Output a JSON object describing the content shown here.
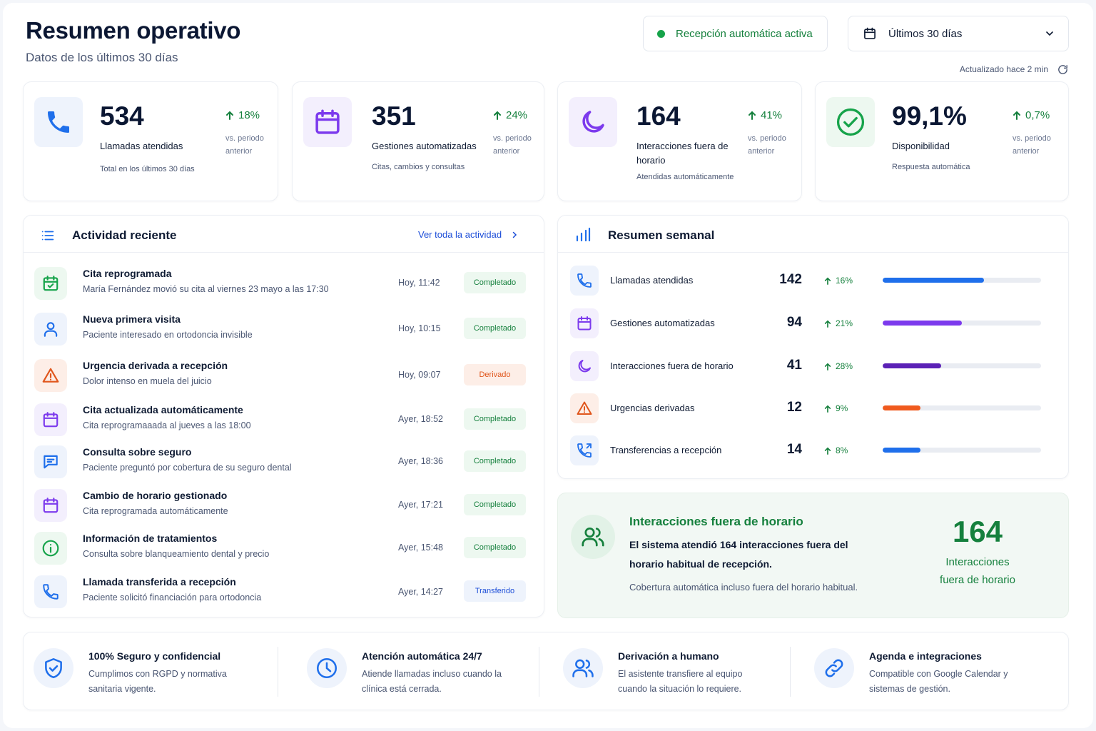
{
  "header": {
    "title": "Resumen operativo",
    "subtitle": "Datos de los últimos 30 días",
    "status_label": "Recepción automática activa",
    "range_label": "Últimos 30 días",
    "updated_label": "Actualizado hace 2 min"
  },
  "stats": [
    {
      "value": "534",
      "label": "Llamadas atendidas",
      "sub": "Total en los últimos 30 días",
      "delta": "18%",
      "vs": "vs. periodo anterior",
      "icon": "phone-icon",
      "color": "#1f6feb"
    },
    {
      "value": "351",
      "label": "Gestiones automatizadas",
      "sub": "Citas, cambios y consultas",
      "delta": "24%",
      "vs": "vs. periodo anterior",
      "icon": "calendar-icon",
      "color": "#7c3aed"
    },
    {
      "value": "164",
      "label": "Interacciones fuera de horario",
      "sub": "Atendidas automáticamente",
      "delta": "41%",
      "vs": "vs. periodo anterior",
      "icon": "moon-icon",
      "color": "#7c3aed"
    },
    {
      "value": "99,1%",
      "label": "Disponibilidad",
      "sub": "Respuesta automática",
      "delta": "0,7%",
      "vs": "vs. periodo anterior",
      "icon": "check-circle-icon",
      "color": "#16a34a"
    }
  ],
  "activity": {
    "title": "Actividad reciente",
    "view_all": "Ver toda la actividad",
    "items": [
      {
        "title": "Cita reprogramada",
        "desc": "María Fernández movió su cita al viernes 23 mayo a las 17:30",
        "time": "Hoy, 11:42",
        "status": "Completado",
        "icon": "calendar-check-icon"
      },
      {
        "title": "Nueva primera visita",
        "desc": "Paciente interesado en ortodoncia invisible",
        "time": "Hoy, 10:15",
        "status": "Completado",
        "icon": "user-icon"
      },
      {
        "title": "Urgencia derivada a recepción",
        "desc": "Dolor intenso en muela del juicio",
        "time": "Hoy, 09:07",
        "status": "Derivado",
        "icon": "warning-icon"
      },
      {
        "title": "Cita actualizada automáticamente",
        "desc": "Cita reprogramaaada al jueves a las 18:00",
        "time": "Ayer, 18:52",
        "status": "Completado",
        "icon": "calendar-icon"
      },
      {
        "title": "Consulta sobre seguro",
        "desc": "Paciente preguntó por cobertura de su seguro dental",
        "time": "Ayer, 18:36",
        "status": "Completado",
        "icon": "message-icon"
      },
      {
        "title": "Cambio de horario gestionado",
        "desc": "Cita reprogramada automáticamente",
        "time": "Ayer, 17:21",
        "status": "Completado",
        "icon": "calendar-icon"
      },
      {
        "title": "Información de tratamientos",
        "desc": "Consulta sobre blanqueamiento dental y precio",
        "time": "Ayer, 15:48",
        "status": "Completado",
        "icon": "info-icon"
      },
      {
        "title": "Llamada transferida a recepción",
        "desc": "Paciente solicitó financiación para ortodoncia",
        "time": "Ayer, 14:27",
        "status": "Transferido",
        "icon": "phone-forward-icon"
      }
    ]
  },
  "weekly": {
    "title": "Resumen semanal",
    "rows": [
      {
        "label": "Llamadas atendidas",
        "value": "142",
        "delta": "16%",
        "fill": 0.64,
        "color": "#1f6feb",
        "icon": "phone-icon"
      },
      {
        "label": "Gestiones automatizadas",
        "value": "94",
        "delta": "21%",
        "fill": 0.5,
        "color": "#7c3aed",
        "icon": "calendar-icon"
      },
      {
        "label": "Interacciones fuera de horario",
        "value": "41",
        "delta": "28%",
        "fill": 0.37,
        "color": "#5b21b6",
        "icon": "moon-icon"
      },
      {
        "label": "Urgencias derivadas",
        "value": "12",
        "delta": "9%",
        "fill": 0.24,
        "color": "#f05a1e",
        "icon": "warning-icon"
      },
      {
        "label": "Transferencias a recepción",
        "value": "14",
        "delta": "8%",
        "fill": 0.24,
        "color": "#1f6feb",
        "icon": "phone-forward-icon"
      }
    ]
  },
  "after_hours": {
    "title": "Interacciones fuera de horario",
    "text": "El sistema atendió 164 interacciones fuera del horario habitual de recepción.",
    "note": "Cobertura automática incluso fuera del horario habitual.",
    "big_value": "164",
    "big_label_1": "Interacciones",
    "big_label_2": "fuera de horario"
  },
  "footer": [
    {
      "title": "100% Seguro y confidencial",
      "desc": "Cumplimos con RGPD y normativa sanitaria vigente.",
      "icon": "shield-check-icon"
    },
    {
      "title": "Atención automática 24/7",
      "desc": "Atiende llamadas incluso cuando la clínica está cerrada.",
      "icon": "clock-icon"
    },
    {
      "title": "Derivación a humano",
      "desc": "El asistente transfiere al equipo cuando la situación lo requiere.",
      "icon": "users-icon"
    },
    {
      "title": "Agenda e integraciones",
      "desc": "Compatible con Google Calendar y sistemas de gestión.",
      "icon": "link-icon"
    }
  ]
}
